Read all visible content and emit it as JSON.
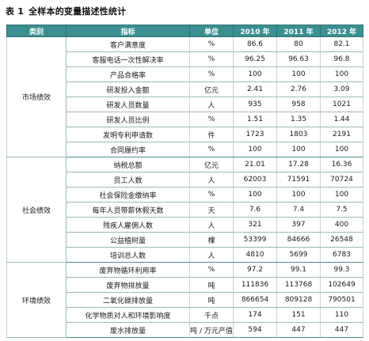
{
  "caption": {
    "number": "表 1",
    "title": "全样本的变量描述性统计"
  },
  "headers": [
    "类别",
    "指标",
    "单位",
    "2010 年",
    "2011 年",
    "2012 年"
  ],
  "groups": [
    {
      "name": "市场绩效",
      "rows": [
        [
          "客户满意度",
          "%",
          "86.6",
          "80",
          "82.1"
        ],
        [
          "客服电话一次性解决率",
          "%",
          "96.25",
          "96.63",
          "96.8"
        ],
        [
          "产品合格率",
          "%",
          "100",
          "100",
          "100"
        ],
        [
          "研发投入金额",
          "亿元",
          "2.41",
          "2.76",
          "3.09"
        ],
        [
          "研发人员数量",
          "人",
          "935",
          "958",
          "1021"
        ],
        [
          "研发人员比例",
          "%",
          "1.51",
          "1.35",
          "1.44"
        ],
        [
          "发明专利申请数",
          "件",
          "1723",
          "1803",
          "2191"
        ],
        [
          "合同履约率",
          "%",
          "100",
          "100",
          "100"
        ]
      ]
    },
    {
      "name": "社会绩效",
      "rows": [
        [
          "纳税总额",
          "亿元",
          "21.01",
          "17.28",
          "16.36"
        ],
        [
          "员工人数",
          "人",
          "62003",
          "71591",
          "70724"
        ],
        [
          "社会保险金缴纳率",
          "%",
          "100",
          "100",
          "100"
        ],
        [
          "每年人员带薪休假天数",
          "天",
          "7.6",
          "7.4",
          "7.5"
        ],
        [
          "残疾人雇佣人数",
          "人",
          "321",
          "397",
          "400"
        ],
        [
          "公益植树量",
          "棵",
          "53399",
          "84666",
          "26548"
        ],
        [
          "培训总人数",
          "人",
          "4810",
          "5699",
          "6783"
        ]
      ]
    },
    {
      "name": "环境绩效",
      "rows": [
        [
          "废弃物循环利用率",
          "%",
          "97.2",
          "99.1",
          "99.3"
        ],
        [
          "废弃物排放量",
          "吨",
          "111836",
          "113768",
          "102649"
        ],
        [
          "二氧化碳排放量",
          "吨",
          "866654",
          "809128",
          "790501"
        ],
        [
          "化学物质对人和环境影响度",
          "千点",
          "174",
          "151",
          "110"
        ],
        [
          "废水排放量",
          "吨 / 万元产值",
          "594",
          "447",
          "447"
        ]
      ]
    }
  ]
}
